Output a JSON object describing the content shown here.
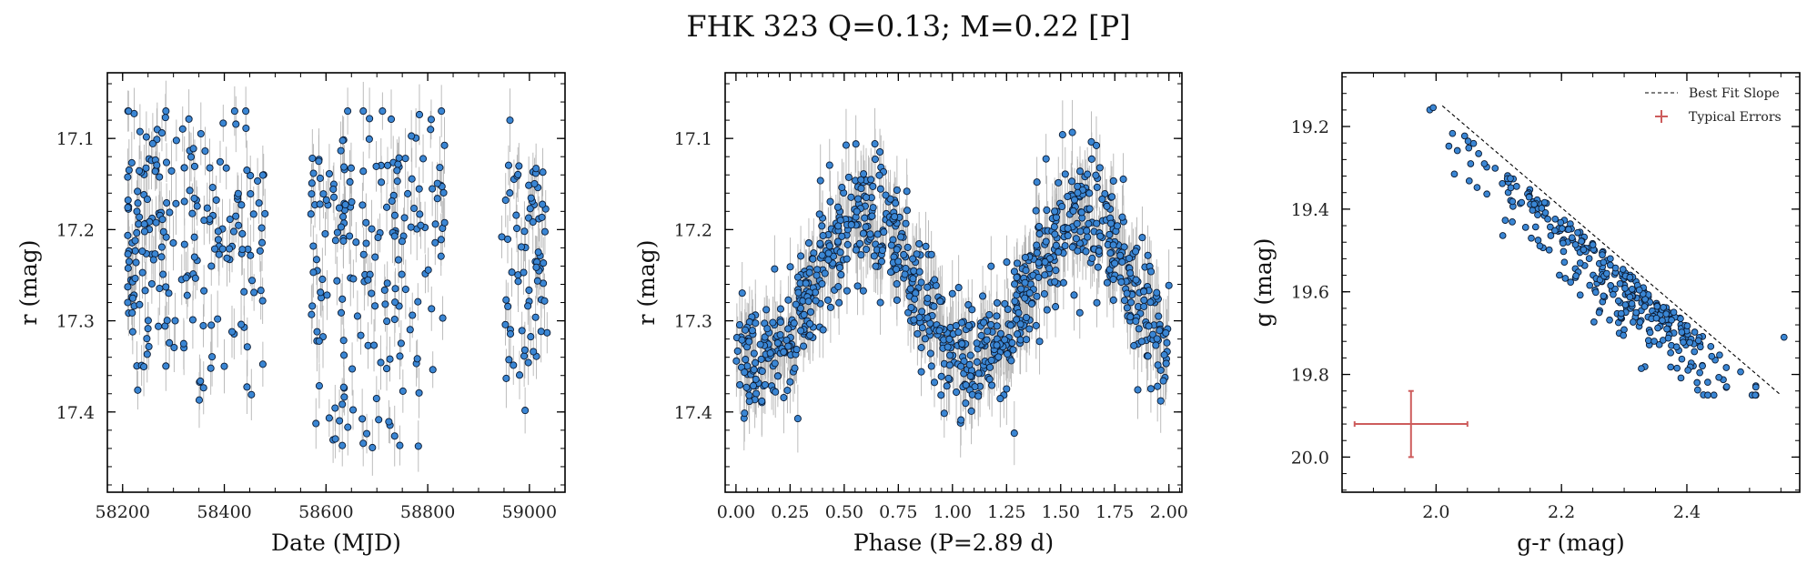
{
  "title": "FHK 323  Q=0.13; M=0.22 [P]",
  "colors": {
    "point_fill": "#3a86d4",
    "point_edge": "#0b1b33",
    "errorbar": "#b5b5b5",
    "fit_line": "#000000",
    "typical_error": "#cd5c5c"
  },
  "chart_data": [
    {
      "type": "scatter",
      "panel": "lightcurve",
      "xlabel": "Date (MJD)",
      "ylabel": "r (mag)",
      "xlim": [
        58170,
        59070
      ],
      "ylim": [
        17.488,
        17.028
      ],
      "y_inverted": true,
      "xticks": [
        58200,
        58400,
        58600,
        58800,
        59000
      ],
      "yticks": [
        17.1,
        17.2,
        17.3,
        17.4
      ],
      "ytick_labels": [
        "17.1",
        "17.2",
        "17.3",
        "17.4"
      ],
      "seasons": [
        {
          "x_range": [
            58210,
            58480
          ],
          "y_range": [
            17.07,
            17.39
          ]
        },
        {
          "x_range": [
            58570,
            58835
          ],
          "y_range": [
            17.07,
            17.44
          ]
        },
        {
          "x_range": [
            58945,
            59035
          ],
          "y_range": [
            17.08,
            17.4
          ]
        }
      ],
      "n_points": 480,
      "error_bars": true
    },
    {
      "type": "scatter",
      "panel": "phased",
      "xlabel": "Phase (P=2.89 d)",
      "ylabel": "r (mag)",
      "period_days": 2.89,
      "xlim": [
        -0.05,
        2.06
      ],
      "ylim": [
        17.488,
        17.028
      ],
      "y_inverted": true,
      "xticks": [
        0.0,
        0.25,
        0.5,
        0.75,
        1.0,
        1.25,
        1.5,
        1.75,
        2.0
      ],
      "xtick_labels": [
        "0.00",
        "0.25",
        "0.50",
        "0.75",
        "1.00",
        "1.25",
        "1.50",
        "1.75",
        "2.00"
      ],
      "yticks": [
        17.1,
        17.2,
        17.3,
        17.4
      ],
      "ytick_labels": [
        "17.1",
        "17.2",
        "17.3",
        "17.4"
      ],
      "curve": {
        "mean_mag": 17.265,
        "amplitude": 0.085,
        "max_phase": 0.6,
        "min_phase": 0.1,
        "scatter": 0.035
      },
      "n_points": 900,
      "error_bars": true
    },
    {
      "type": "scatter",
      "panel": "color-magnitude",
      "xlabel": "g-r (mag)",
      "ylabel": "g (mag)",
      "xlim": [
        1.85,
        2.58
      ],
      "ylim": [
        20.085,
        19.07
      ],
      "y_inverted": true,
      "xticks": [
        2.0,
        2.2,
        2.4
      ],
      "xtick_labels": [
        "2.0",
        "2.2",
        "2.4"
      ],
      "yticks": [
        19.2,
        19.4,
        19.6,
        19.8,
        20.0
      ],
      "ytick_labels": [
        "19.2",
        "19.4",
        "19.6",
        "19.8",
        "20.0"
      ],
      "best_fit_slope": {
        "x1": 2.01,
        "y1": 19.15,
        "x2": 2.55,
        "y2": 19.85
      },
      "typical_errors": {
        "x": 1.96,
        "y": 19.92,
        "xerr": 0.09,
        "yerr": 0.08
      },
      "legend": {
        "position": "top-right",
        "entries": [
          "Best Fit Slope",
          "Typical Errors"
        ]
      },
      "n_points": 330
    }
  ]
}
